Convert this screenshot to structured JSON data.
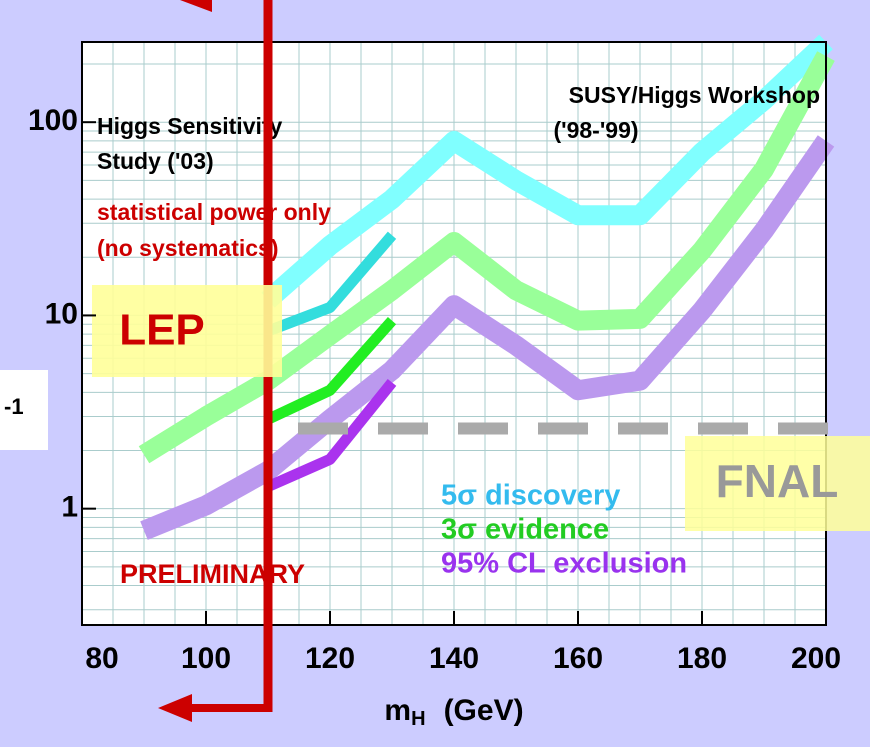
{
  "chart_data": {
    "type": "line",
    "log_y": true,
    "grid": true,
    "x": [
      90,
      100,
      110,
      120,
      130,
      140,
      150,
      160,
      170,
      180,
      190,
      200
    ],
    "xlim": [
      80,
      200
    ],
    "xticks": [
      80,
      100,
      120,
      140,
      160,
      180,
      200
    ],
    "x_grid_step": 5,
    "ylim": [
      0.25,
      260
    ],
    "yticks": [
      1,
      10,
      100
    ],
    "yminor": [
      0.3,
      0.4,
      0.5,
      0.6,
      0.7,
      0.8,
      0.9,
      2,
      3,
      4,
      5,
      6,
      7,
      8,
      9,
      20,
      30,
      40,
      50,
      60,
      70,
      80,
      90,
      200
    ],
    "xlabel": {
      "main": "m",
      "sub": "H",
      "unit": "(GeV)"
    },
    "series": [
      {
        "name": "5σ discovery",
        "color": "#80ffff",
        "label_color": "#33bbee",
        "width": 20,
        "values": [
          null,
          null,
          12,
          23,
          40,
          80,
          50,
          33,
          33,
          70,
          130,
          260
        ]
      },
      {
        "name": "3σ evidence",
        "color": "#99ff99",
        "label_color": "#22cc22",
        "width": 20,
        "values": [
          1.9,
          3,
          4.6,
          7.9,
          13.5,
          24,
          13.5,
          9.4,
          9.6,
          21.7,
          57,
          220
        ]
      },
      {
        "name": "95% CL exclusion",
        "color": "#bb99ee",
        "label_color": "#9933ee",
        "width": 20,
        "values": [
          0.77,
          1.04,
          1.57,
          2.9,
          5.2,
          11.3,
          7,
          4.1,
          4.6,
          10.6,
          27.5,
          80
        ]
      },
      {
        "color": "#33dddd",
        "width": 11,
        "values": [
          null,
          null,
          8.3,
          11,
          26,
          null,
          null,
          null,
          null,
          null,
          null,
          null
        ]
      },
      {
        "color": "#22ee22",
        "width": 11,
        "values": [
          null,
          null,
          2.9,
          4.1,
          9.4,
          null,
          null,
          null,
          null,
          null,
          null,
          null
        ]
      },
      {
        "color": "#aa33ee",
        "width": 11,
        "values": [
          null,
          null,
          1.3,
          1.8,
          4.5,
          null,
          null,
          null,
          null,
          null,
          null,
          null
        ]
      }
    ],
    "annotations": {
      "study": [
        "Higgs Sensitivity",
        "Study ('03)"
      ],
      "study_note": [
        "statistical power only",
        "(no systematics)"
      ],
      "workshop": [
        "SUSY/Higgs Workshop",
        "('98-'99)"
      ],
      "preliminary": "PRELIMINARY",
      "lep": "LEP",
      "fnal": "FNAL",
      "left_cut": "-1"
    },
    "lep_mass": 110,
    "fnal_level": 2.6
  }
}
